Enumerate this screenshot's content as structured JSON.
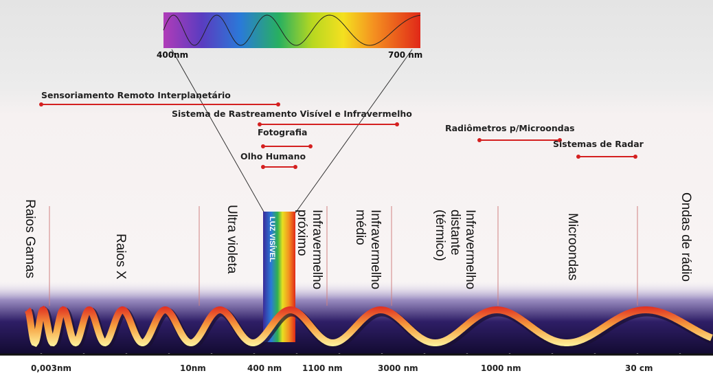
{
  "spectrum": {
    "start": "400nm",
    "end": "700 nm"
  },
  "applications": [
    "Sensoriamento Remoto Interplanetário",
    "Sistema de Rastreamento Visível e Infravermelho",
    "Fotografia",
    "Olho Humano",
    "Radiômetros p/Microondas",
    "Sistemas de Radar"
  ],
  "bands": [
    [
      "Raios Gamas"
    ],
    [
      "Raios X"
    ],
    [
      "Ultra violeta"
    ],
    [
      "LUZ VISÍVEL"
    ],
    [
      "Infravermelho",
      "próximo"
    ],
    [
      "Infravermelho",
      "médio"
    ],
    [
      "Infravermelho",
      "distante",
      "(térmico)"
    ],
    [
      "Microondas"
    ],
    [
      "Ondas de rádio"
    ]
  ],
  "scale": [
    "0,003nm",
    "10nm",
    "400 nm",
    "1100 nm",
    "3000 nm",
    "1000 nm",
    "30 cm"
  ]
}
